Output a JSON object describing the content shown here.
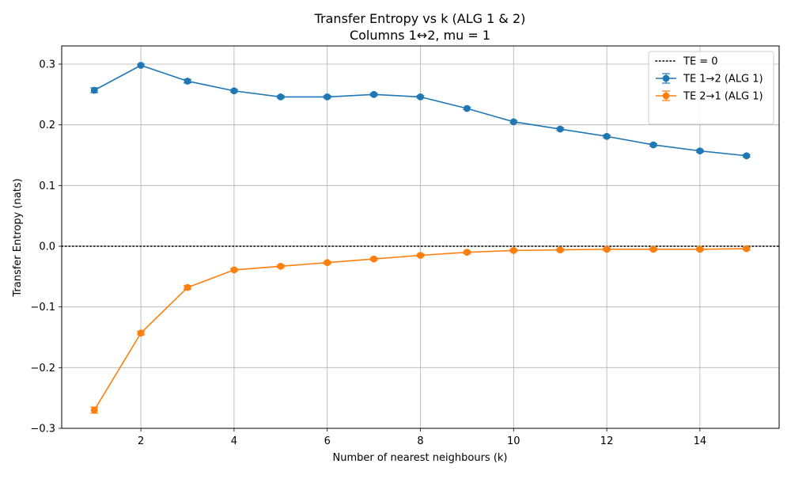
{
  "chart_data": {
    "type": "line",
    "title": "Transfer Entropy vs k (ALG 1 & 2)",
    "subtitle": "Columns 1↔2, mu = 1",
    "xlabel": "Number of nearest neighbours (k)",
    "ylabel": "Transfer Entropy (nats)",
    "xlim": [
      0.3,
      15.7
    ],
    "ylim": [
      -0.3,
      0.33
    ],
    "x_ticks": [
      2,
      4,
      6,
      8,
      10,
      12,
      14
    ],
    "x_tick_labels": [
      "2",
      "4",
      "6",
      "8",
      "10",
      "12",
      "14"
    ],
    "y_ticks": [
      -0.3,
      -0.2,
      -0.1,
      0.0,
      0.1,
      0.2,
      0.3
    ],
    "y_tick_labels": [
      "−0.3",
      "−0.2",
      "−0.1",
      "0.0",
      "0.1",
      "0.2",
      "0.3"
    ],
    "grid": true,
    "legend_position": "top-right",
    "reference_line": {
      "name": "TE = 0",
      "y": 0,
      "style": "dotted",
      "color": "#000000"
    },
    "x": [
      1,
      2,
      3,
      4,
      5,
      6,
      7,
      8,
      9,
      10,
      11,
      12,
      13,
      14,
      15
    ],
    "series": [
      {
        "name": "TE 1→2 (ALG 1)",
        "color": "#1f77b4",
        "values": [
          0.257,
          0.298,
          0.272,
          0.256,
          0.246,
          0.246,
          0.25,
          0.246,
          0.227,
          0.205,
          0.193,
          0.181,
          0.167,
          0.157,
          0.149
        ],
        "errors": [
          0.004,
          0.002,
          0.003,
          0.002,
          0.002,
          0.002,
          0.002,
          0.002,
          0.002,
          0.002,
          0.002,
          0.002,
          0.002,
          0.002,
          0.002
        ]
      },
      {
        "name": "TE 2→1 (ALG 1)",
        "color": "#ff7f0e",
        "values": [
          -0.27,
          -0.143,
          -0.068,
          -0.039,
          -0.033,
          -0.027,
          -0.021,
          -0.015,
          -0.01,
          -0.007,
          -0.006,
          -0.005,
          -0.005,
          -0.005,
          -0.004
        ],
        "errors": [
          0.005,
          0.003,
          0.003,
          0.002,
          0.002,
          0.002,
          0.002,
          0.002,
          0.002,
          0.002,
          0.002,
          0.002,
          0.002,
          0.002,
          0.002
        ]
      }
    ]
  }
}
